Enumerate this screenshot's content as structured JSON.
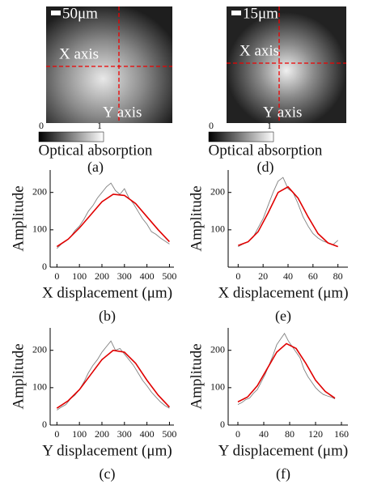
{
  "chart_data": [
    {
      "type": "image",
      "scale_bar": "50μm",
      "x_label": "X axis",
      "y_label": "Y axis",
      "colorbar_ticks": [
        0,
        1
      ],
      "colorbar_label": "Optical absorption",
      "caption": "(a)"
    },
    {
      "type": "image",
      "scale_bar": "15μm",
      "x_label": "X axis",
      "y_label": "Y axis",
      "colorbar_ticks": [
        0,
        1
      ],
      "colorbar_label": "Optical absorption",
      "caption": "(d)"
    },
    {
      "type": "line",
      "ylabel": "Amplitude",
      "xlabel": "X displacement (μm)",
      "caption": "(b)",
      "xlim": [
        -30,
        520
      ],
      "xticks": [
        0,
        100,
        200,
        300,
        400,
        500
      ],
      "ylim": [
        0,
        260
      ],
      "yticks": [
        0,
        100,
        200
      ],
      "series": [
        {
          "color": "#808080",
          "x": [
            0,
            20,
            40,
            60,
            80,
            100,
            120,
            140,
            160,
            180,
            200,
            220,
            240,
            260,
            280,
            300,
            320,
            340,
            360,
            380,
            400,
            420,
            440,
            460,
            480,
            500
          ],
          "values": [
            50,
            62,
            70,
            80,
            98,
            110,
            128,
            150,
            165,
            185,
            200,
            215,
            225,
            205,
            195,
            210,
            185,
            170,
            150,
            130,
            115,
            95,
            88,
            78,
            70,
            62
          ]
        },
        {
          "color": "#e00000",
          "x": [
            0,
            50,
            100,
            150,
            200,
            250,
            300,
            350,
            400,
            450,
            500
          ],
          "values": [
            55,
            75,
            105,
            140,
            175,
            195,
            192,
            170,
            135,
            100,
            68
          ]
        }
      ]
    },
    {
      "type": "line",
      "ylabel": "Amplitude",
      "xlabel": "X displacement (μm)",
      "caption": "(e)",
      "xlim": [
        -8,
        88
      ],
      "xticks": [
        0,
        20,
        40,
        60,
        80
      ],
      "ylim": [
        0,
        260
      ],
      "yticks": [
        100,
        200
      ],
      "series": [
        {
          "color": "#808080",
          "x": [
            0,
            4,
            8,
            12,
            16,
            20,
            24,
            28,
            32,
            36,
            40,
            44,
            48,
            52,
            56,
            60,
            64,
            68,
            72,
            76,
            80
          ],
          "values": [
            55,
            62,
            68,
            80,
            105,
            130,
            165,
            200,
            230,
            240,
            210,
            200,
            170,
            135,
            110,
            90,
            78,
            70,
            65,
            60,
            72
          ]
        },
        {
          "color": "#e00000",
          "x": [
            0,
            8,
            16,
            24,
            32,
            40,
            48,
            56,
            64,
            72,
            80
          ],
          "values": [
            58,
            68,
            95,
            145,
            200,
            215,
            185,
            135,
            90,
            65,
            55
          ]
        }
      ]
    },
    {
      "type": "line",
      "ylabel": "Amplitude",
      "xlabel": "Y displacement (μm)",
      "caption": "(c)",
      "xlim": [
        -30,
        520
      ],
      "xticks": [
        0,
        100,
        200,
        300,
        400,
        500
      ],
      "ylim": [
        0,
        260
      ],
      "yticks": [
        0,
        100,
        200
      ],
      "series": [
        {
          "color": "#808080",
          "x": [
            0,
            20,
            40,
            60,
            80,
            100,
            120,
            140,
            160,
            180,
            200,
            220,
            240,
            260,
            280,
            300,
            320,
            340,
            360,
            380,
            400,
            420,
            440,
            460,
            480,
            500
          ],
          "values": [
            40,
            48,
            55,
            70,
            80,
            95,
            115,
            140,
            160,
            175,
            195,
            210,
            225,
            200,
            205,
            190,
            175,
            160,
            140,
            120,
            105,
            88,
            75,
            62,
            52,
            45
          ]
        },
        {
          "color": "#e00000",
          "x": [
            0,
            50,
            100,
            150,
            200,
            250,
            300,
            350,
            400,
            450,
            500
          ],
          "values": [
            45,
            65,
            95,
            135,
            175,
            200,
            195,
            165,
            120,
            80,
            48
          ]
        }
      ]
    },
    {
      "type": "line",
      "ylabel": "Amplitude",
      "xlabel": "Y displacement (μm)",
      "caption": "(f)",
      "xlim": [
        -15,
        170
      ],
      "xticks": [
        0,
        40,
        80,
        120,
        160
      ],
      "ylim": [
        0,
        260
      ],
      "yticks": [
        0,
        100,
        200
      ],
      "series": [
        {
          "color": "#808080",
          "x": [
            0,
            6,
            12,
            18,
            24,
            30,
            36,
            42,
            48,
            54,
            60,
            66,
            72,
            78,
            84,
            90,
            96,
            102,
            108,
            114,
            120,
            126,
            132,
            138,
            144,
            150
          ],
          "values": [
            55,
            60,
            68,
            72,
            85,
            95,
            115,
            135,
            160,
            185,
            215,
            230,
            245,
            225,
            210,
            195,
            180,
            150,
            130,
            115,
            100,
            90,
            82,
            78,
            75,
            70
          ]
        },
        {
          "color": "#e00000",
          "x": [
            0,
            15,
            30,
            45,
            60,
            75,
            90,
            105,
            120,
            135,
            150
          ],
          "values": [
            62,
            75,
            105,
            150,
            195,
            218,
            205,
            165,
            120,
            90,
            72
          ]
        }
      ]
    }
  ]
}
